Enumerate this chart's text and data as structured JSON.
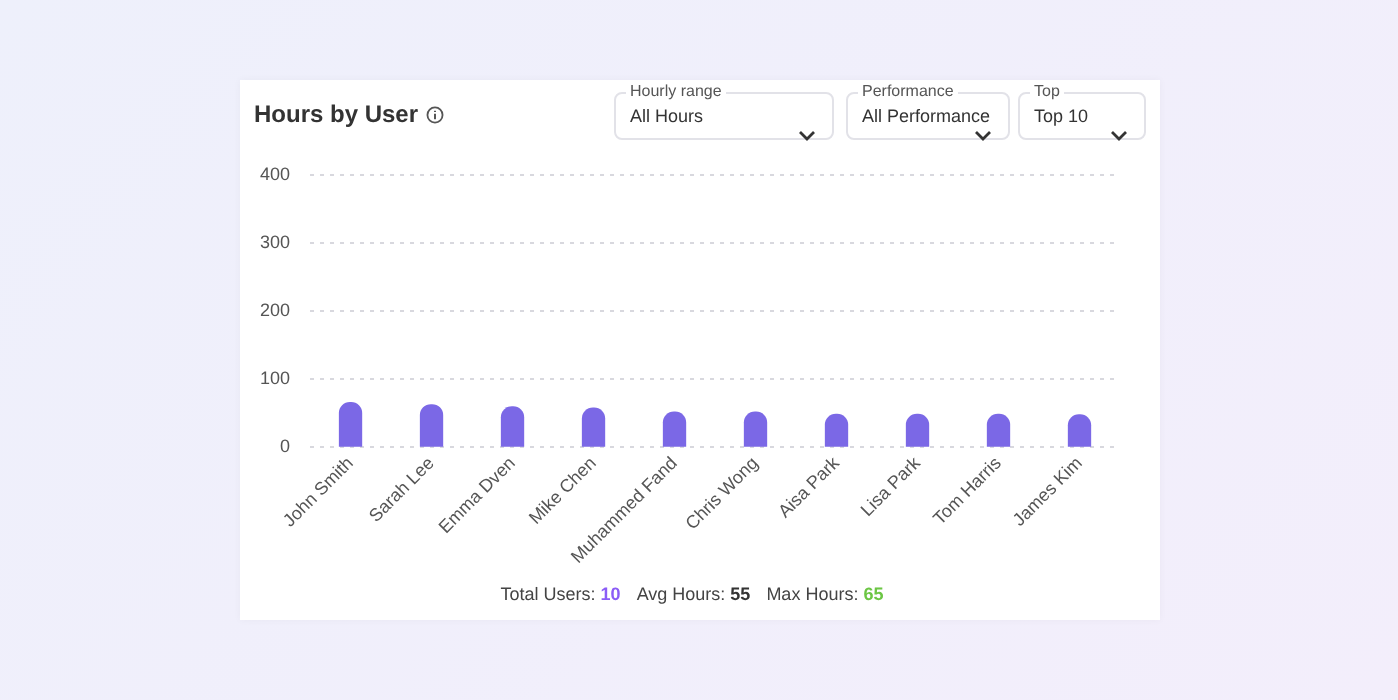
{
  "chart_data": {
    "type": "bar",
    "title": "Hours by User",
    "categories": [
      "John Smith",
      "Sarah Lee",
      "Emma Dven",
      "Mike Chen",
      "Muhammed Fand",
      "Chris Wong",
      "Aisa Park",
      "Lisa Park",
      "Tom Harris",
      "James Kim"
    ],
    "values": [
      65,
      62,
      59,
      57,
      51,
      51,
      48,
      48,
      48,
      47
    ],
    "color": "#7b68e6",
    "ylim": [
      0,
      400
    ],
    "yticks": [
      0,
      100,
      200,
      300,
      400
    ],
    "grid": "y",
    "legend": false,
    "annotations": [
      "Hourly range",
      "All Hours",
      "Performance",
      "All Performance",
      "Top",
      "Top 10",
      "Total Users: 10",
      "Avg Hours: 55",
      "Max Hours: 65"
    ]
  }
}
